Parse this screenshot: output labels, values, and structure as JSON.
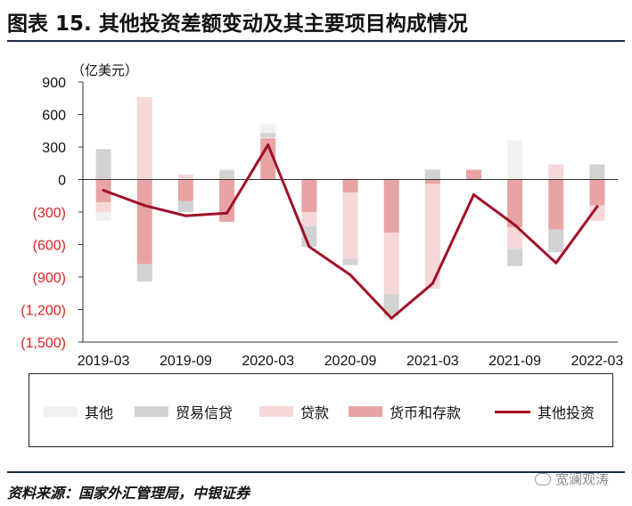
{
  "title": "图表 15. 其他投资差额变动及其主要项目构成情况",
  "source": "资料来源：国家外汇管理局，中银证券",
  "watermark": "宽澜观涛",
  "chart_data": {
    "type": "bar",
    "stacked": true,
    "ylabel": "（亿美元）",
    "ylim": [
      -1500,
      900
    ],
    "yticks": [
      900,
      600,
      300,
      0,
      -300,
      -600,
      -900,
      -1200,
      -1500
    ],
    "ytick_labels": [
      "900",
      "600",
      "300",
      "0",
      "(300)",
      "(600)",
      "(900)",
      "(1,200)",
      "(1,500)"
    ],
    "categories": [
      "2019-03",
      "2019-06",
      "2019-09",
      "2019-12",
      "2020-03",
      "2020-06",
      "2020-09",
      "2020-12",
      "2021-03",
      "2021-06",
      "2021-09",
      "2021-12",
      "2022-03"
    ],
    "xtick_labels": [
      "2019-03",
      "",
      "2019-09",
      "",
      "2020-03",
      "",
      "2020-09",
      "",
      "2021-03",
      "",
      "2021-09",
      "",
      "2022-03"
    ],
    "series": [
      {
        "name": "其他",
        "kind": "bar",
        "color": "#f1f1f1",
        "values": [
          -80,
          0,
          0,
          15,
          80,
          0,
          0,
          -40,
          0,
          0,
          360,
          0,
          0
        ]
      },
      {
        "name": "贸易信贷",
        "kind": "bar",
        "color": "#d2d2d2",
        "values": [
          280,
          -160,
          -100,
          85,
          40,
          -190,
          -60,
          -200,
          90,
          0,
          -160,
          -210,
          140
        ]
      },
      {
        "name": "贷款",
        "kind": "bar",
        "color": "#f6d8d8",
        "values": [
          -90,
          760,
          45,
          0,
          10,
          -130,
          -610,
          -570,
          -970,
          0,
          -200,
          140,
          -140
        ]
      },
      {
        "name": "货币和存款",
        "kind": "bar",
        "color": "#e8a4a4",
        "values": [
          -210,
          -780,
          -200,
          -390,
          380,
          -300,
          -120,
          -490,
          -40,
          90,
          -440,
          -460,
          -240
        ]
      },
      {
        "name": "其他投资",
        "kind": "line",
        "color": "#a01028",
        "values": [
          -100,
          -240,
          -335,
          -310,
          320,
          -620,
          -880,
          -1280,
          -960,
          -140,
          -420,
          -770,
          -250
        ]
      }
    ]
  }
}
